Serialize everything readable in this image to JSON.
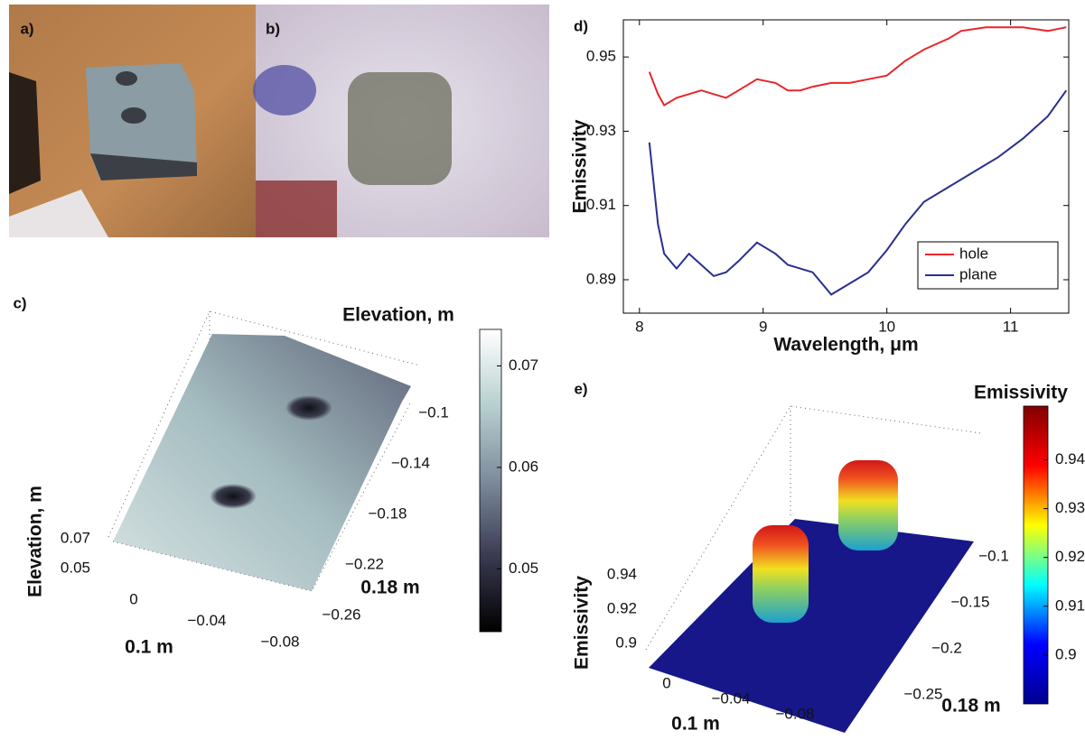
{
  "panel_labels": [
    "a)",
    "b)",
    "c)",
    "d)",
    "e)"
  ],
  "chart_data": [
    {
      "type": "line",
      "x_label": "Wavelength, μm",
      "y_label": "Emissivity",
      "x": [
        8.08,
        8.15,
        8.2,
        8.3,
        8.4,
        8.5,
        8.6,
        8.7,
        8.8,
        8.95,
        9.1,
        9.2,
        9.3,
        9.4,
        9.55,
        9.7,
        9.85,
        10.0,
        10.15,
        10.3,
        10.5,
        10.6,
        10.8,
        10.9,
        11.1,
        11.3,
        11.45
      ],
      "series": [
        {
          "name": "hole",
          "color": "#e8262a",
          "values": [
            0.946,
            0.94,
            0.937,
            0.939,
            0.94,
            0.941,
            0.94,
            0.939,
            0.941,
            0.944,
            0.943,
            0.941,
            0.941,
            0.942,
            0.943,
            0.943,
            0.944,
            0.945,
            0.949,
            0.952,
            0.955,
            0.957,
            0.958,
            0.958,
            0.958,
            0.957,
            0.958
          ]
        },
        {
          "name": "plane",
          "color": "#2b2f8f",
          "values": [
            0.927,
            0.905,
            0.897,
            0.893,
            0.897,
            0.894,
            0.891,
            0.892,
            0.895,
            0.9,
            0.897,
            0.894,
            0.893,
            0.892,
            0.886,
            0.889,
            0.892,
            0.898,
            0.905,
            0.911,
            0.915,
            0.917,
            0.921,
            0.923,
            0.928,
            0.934,
            0.941
          ]
        }
      ],
      "xlim": [
        7.87,
        11.47
      ],
      "ylim": [
        0.881,
        0.96
      ],
      "xticks": [
        8,
        9,
        10,
        11
      ],
      "yticks": [
        0.89,
        0.91,
        0.93,
        0.95
      ],
      "legend": "lower right"
    },
    {
      "type": "surface",
      "colormap": "bone",
      "colorbar_label": "Elevation, m",
      "clim": [
        0.0438,
        0.0736
      ],
      "colorbar_ticks": [
        0.05,
        0.06,
        0.07
      ],
      "x_label": "0.1 m",
      "y_label": "0.18 m",
      "z_label": "Elevation, m",
      "xticks": [
        0,
        {
          "value": -0.04,
          "label": "−0.04"
        },
        {
          "value": -0.08,
          "label": "−0.08"
        }
      ],
      "yticks": [
        {
          "value": -0.1,
          "label": "−0.1"
        },
        {
          "value": -0.14,
          "label": "−0.14"
        },
        {
          "value": -0.18,
          "label": "−0.18"
        },
        {
          "value": -0.22,
          "label": "−0.22"
        },
        {
          "value": -0.26,
          "label": "−0.26"
        }
      ],
      "zticks": [
        0.05,
        0.07
      ]
    },
    {
      "type": "surface",
      "colormap": "jet",
      "colorbar_label": "Emissivity",
      "clim": [
        0.89,
        0.951
      ],
      "colorbar_ticks": [
        0.9,
        0.91,
        0.92,
        0.93,
        0.94
      ],
      "x_label": "0.1 m",
      "y_label": "0.18 m",
      "z_label": "Emissivity",
      "xticks": [
        0,
        {
          "value": -0.04,
          "label": "−0.04"
        },
        {
          "value": -0.08,
          "label": "−0.08"
        }
      ],
      "yticks": [
        {
          "value": -0.1,
          "label": "−0.1"
        },
        {
          "value": -0.15,
          "label": "−0.15"
        },
        {
          "value": -0.2,
          "label": "−0.2"
        },
        {
          "value": -0.25,
          "label": "−0.25"
        }
      ],
      "zticks": [
        0.9,
        0.92,
        0.94
      ]
    }
  ]
}
